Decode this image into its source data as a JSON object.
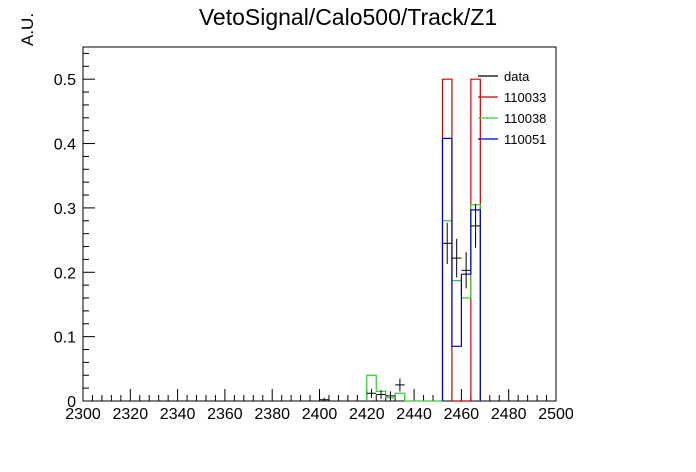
{
  "chart_data": {
    "type": "bar",
    "title": "VetoSignal/Calo500/Track/Z1",
    "xlabel": "",
    "ylabel": "A.U.",
    "xlim": [
      2300,
      2500
    ],
    "ylim": [
      0,
      0.55
    ],
    "x_ticks": [
      "2300",
      "2320",
      "2340",
      "2360",
      "2380",
      "2400",
      "2420",
      "2440",
      "2460",
      "2480",
      "2500"
    ],
    "y_ticks": [
      "0",
      "0.1",
      "0.2",
      "0.3",
      "0.4",
      "0.5"
    ],
    "bin_width": 4,
    "legend_position": "top-right",
    "series": [
      {
        "name": "data",
        "kind": "points",
        "color": "#000000",
        "x": [
          2402,
          2422,
          2426,
          2430,
          2434,
          2454,
          2458,
          2462,
          2466
        ],
        "y": [
          0.002,
          0.012,
          0.01,
          0.008,
          0.025,
          0.245,
          0.222,
          0.203,
          0.272
        ],
        "yerr": [
          0.003,
          0.007,
          0.007,
          0.007,
          0.01,
          0.032,
          0.03,
          0.028,
          0.034
        ]
      },
      {
        "name": "110033",
        "kind": "hist",
        "color": "#cc0000",
        "bins": [
          2452,
          2456,
          2460,
          2464,
          2468
        ],
        "values": [
          0.5,
          0,
          0,
          0.5
        ]
      },
      {
        "name": "110038",
        "kind": "hist",
        "color": "#33cc33",
        "bins": [
          2420,
          2424,
          2428,
          2432,
          2436,
          2440,
          2444,
          2448,
          2452,
          2456,
          2460,
          2464,
          2468
        ],
        "values": [
          0.04,
          0.015,
          0.005,
          0.012,
          0,
          0,
          0,
          0,
          0.28,
          0.187,
          0.16,
          0.305
        ]
      },
      {
        "name": "110051",
        "kind": "hist",
        "color": "#0000cc",
        "bins": [
          2452,
          2456,
          2460,
          2464,
          2468
        ],
        "values": [
          0.408,
          0.085,
          0.197,
          0.297
        ]
      }
    ]
  }
}
